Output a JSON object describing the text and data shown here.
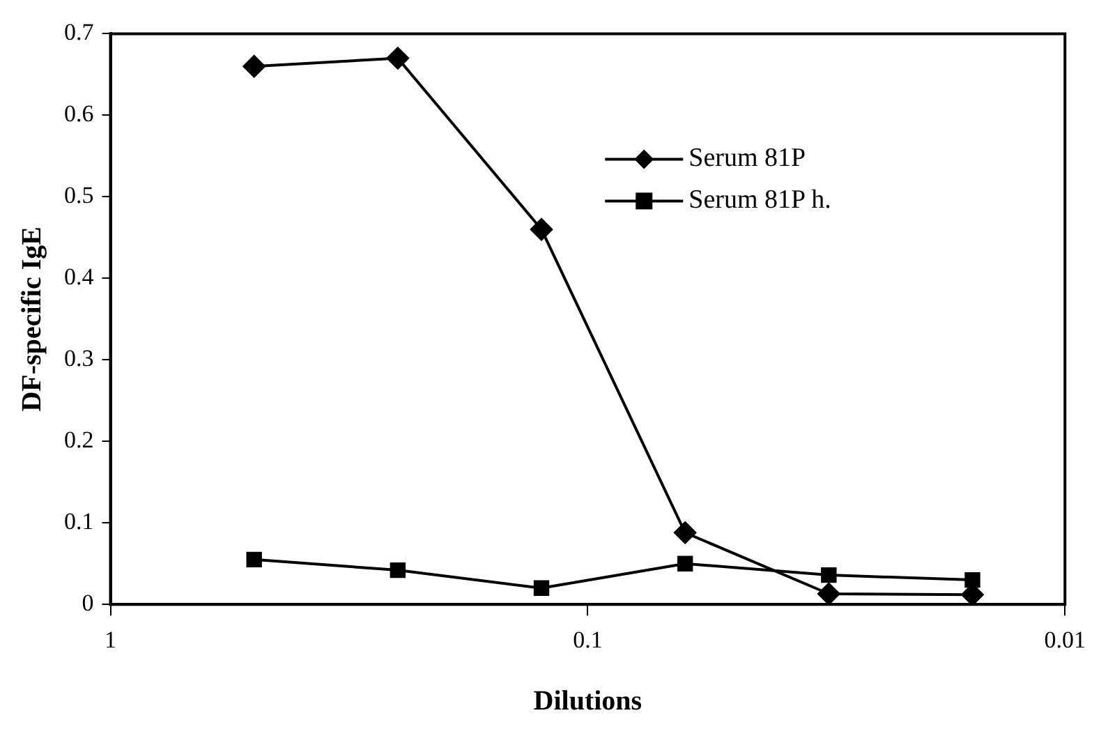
{
  "chart_data": {
    "type": "line",
    "xlabel": "Dilutions",
    "ylabel": "DF-specific IgE",
    "log": "x",
    "x": [
      0.5,
      0.25,
      0.125,
      0.0625,
      0.03125,
      0.015625
    ],
    "xlim": [
      1,
      0.01
    ],
    "xticks": [
      1,
      0.1,
      0.01
    ],
    "ylim": [
      0,
      0.7
    ],
    "yticks": [
      0,
      0.1,
      0.2,
      0.3,
      0.4,
      0.5,
      0.6,
      0.7
    ],
    "grid": false,
    "legend": "top right",
    "line_style": "solid",
    "series": [
      {
        "name": "Serum 81P",
        "color": "#000000",
        "marker": "diamond",
        "values": [
          0.66,
          0.67,
          0.46,
          0.088,
          0.013,
          0.012
        ]
      },
      {
        "name": "Serum 81P h.",
        "color": "#000000",
        "marker": "square",
        "values": [
          0.055,
          0.042,
          0.02,
          0.05,
          0.036,
          0.03
        ]
      }
    ]
  }
}
